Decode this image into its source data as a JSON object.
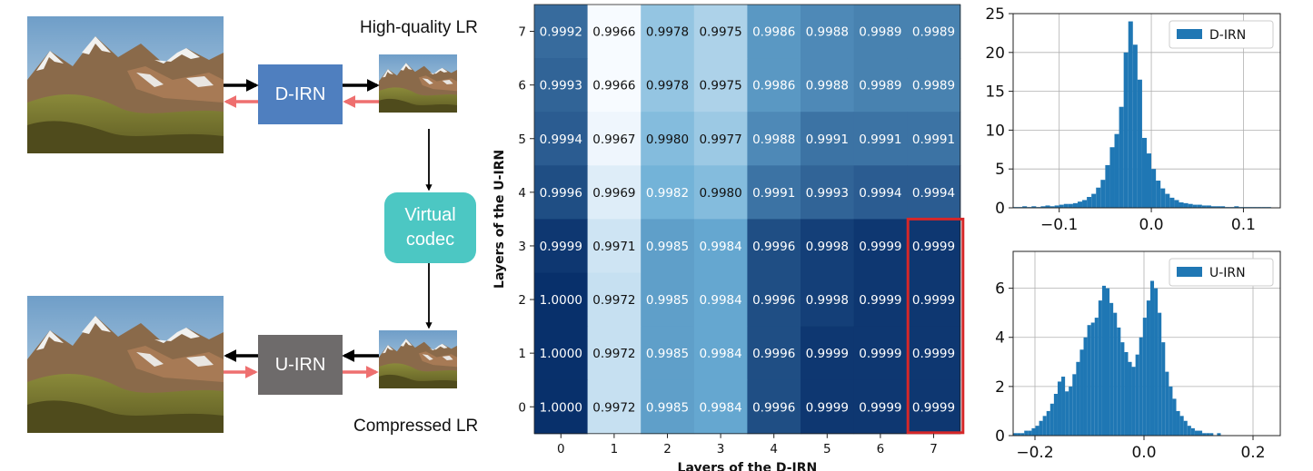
{
  "diagram": {
    "labels": {
      "top_module": "D-IRN",
      "bottom_module": "U-IRN",
      "codec_line1": "Virtual",
      "codec_line2": "codec",
      "hq_caption": "High-quality LR",
      "compressed_caption": "Compressed LR"
    },
    "colors": {
      "d_irn_box": "#4f7fbf",
      "u_irn_box": "#6e6b6b",
      "codec_box": "#4cc7c3",
      "forward_arrow": "#000000",
      "backward_arrow": "#ee6f6f"
    }
  },
  "heatmap": {
    "xlabel": "Layers of the D-IRN",
    "ylabel": "Layers of the U-IRN",
    "x_ticks": [
      "0",
      "1",
      "2",
      "3",
      "4",
      "5",
      "6",
      "7"
    ],
    "y_ticks": [
      "7",
      "6",
      "5",
      "4",
      "3",
      "2",
      "1",
      "0"
    ],
    "rows": [
      [
        "0.9992",
        "0.9966",
        "0.9978",
        "0.9975",
        "0.9986",
        "0.9988",
        "0.9989",
        "0.9989"
      ],
      [
        "0.9993",
        "0.9966",
        "0.9978",
        "0.9975",
        "0.9986",
        "0.9988",
        "0.9989",
        "0.9989"
      ],
      [
        "0.9994",
        "0.9967",
        "0.9980",
        "0.9977",
        "0.9988",
        "0.9991",
        "0.9991",
        "0.9991"
      ],
      [
        "0.9996",
        "0.9969",
        "0.9982",
        "0.9980",
        "0.9991",
        "0.9993",
        "0.9994",
        "0.9994"
      ],
      [
        "0.9999",
        "0.9971",
        "0.9985",
        "0.9984",
        "0.9996",
        "0.9998",
        "0.9999",
        "0.9999"
      ],
      [
        "1.0000",
        "0.9972",
        "0.9985",
        "0.9984",
        "0.9996",
        "0.9998",
        "0.9999",
        "0.9999"
      ],
      [
        "1.0000",
        "0.9972",
        "0.9985",
        "0.9984",
        "0.9996",
        "0.9999",
        "0.9999",
        "0.9999"
      ],
      [
        "1.0000",
        "0.9972",
        "0.9985",
        "0.9984",
        "0.9996",
        "0.9999",
        "0.9999",
        "0.9999"
      ]
    ],
    "highlight_column": "7",
    "highlight_color": "#d62728"
  },
  "chart_data": [
    {
      "type": "histogram",
      "legend": "D-IRN",
      "legend_position": "top-right",
      "xlim": [
        -0.15,
        0.14
      ],
      "ylim": [
        0,
        25
      ],
      "x_ticks": [
        "−0.1",
        "0.0",
        "0.1"
      ],
      "x_tick_values": [
        -0.1,
        0.0,
        0.1
      ],
      "y_ticks": [
        "0",
        "5",
        "10",
        "15",
        "20",
        "25"
      ],
      "grid": true,
      "bar_color": "#1f77b4",
      "bin_edges_start": -0.15,
      "bin_width": 0.005,
      "values": [
        0.1,
        0.1,
        0.2,
        0.1,
        0.2,
        0.1,
        0.2,
        0.3,
        0.2,
        0.3,
        0.4,
        0.5,
        0.5,
        0.6,
        0.8,
        1.0,
        1.4,
        1.8,
        2.6,
        3.6,
        5.5,
        7.8,
        9.5,
        13.0,
        20.0,
        24.0,
        21.0,
        16.5,
        9.0,
        7.0,
        5.0,
        3.5,
        2.5,
        1.8,
        1.3,
        1.0,
        0.7,
        0.6,
        0.5,
        0.4,
        0.4,
        0.3,
        0.3,
        0.2,
        0.2,
        0.2,
        0.1,
        0.1,
        0.2,
        0.1,
        0.1,
        0.1,
        0.1,
        0.1,
        0.1,
        0.1,
        0.0,
        0.0
      ]
    },
    {
      "type": "histogram",
      "legend": "U-IRN",
      "legend_position": "top-right",
      "xlim": [
        -0.24,
        0.25
      ],
      "ylim": [
        0,
        7.5
      ],
      "x_ticks": [
        "−0.2",
        "0.0",
        "0.2"
      ],
      "x_tick_values": [
        -0.2,
        0.0,
        0.2
      ],
      "y_ticks": [
        "0",
        "2",
        "4",
        "6"
      ],
      "grid": true,
      "bar_color": "#1f77b4",
      "bin_edges_start": -0.24,
      "bin_width": 0.0068,
      "values": [
        0.1,
        0.1,
        0.1,
        0.2,
        0.2,
        0.3,
        0.4,
        0.6,
        0.8,
        1.0,
        1.3,
        1.7,
        2.2,
        2.4,
        1.8,
        2.0,
        2.5,
        3.0,
        3.5,
        4.0,
        4.5,
        4.6,
        4.8,
        5.5,
        6.1,
        6.0,
        5.4,
        5.0,
        4.4,
        3.8,
        3.4,
        3.0,
        2.8,
        3.3,
        4.0,
        4.8,
        5.5,
        6.3,
        6.0,
        5.0,
        3.8,
        2.6,
        2.0,
        1.5,
        1.0,
        0.8,
        0.6,
        0.4,
        0.3,
        0.2,
        0.2,
        0.1,
        0.1,
        0.1,
        0.0,
        0.1,
        0.0
      ]
    }
  ]
}
